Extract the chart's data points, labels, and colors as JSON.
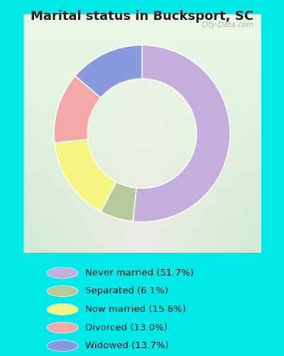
{
  "title": "Marital status in Bucksport, SC",
  "plot_values": [
    51.7,
    6.1,
    15.6,
    13.0,
    13.7
  ],
  "plot_colors": [
    "#c4aedd",
    "#b5c99a",
    "#f5f582",
    "#f5a8a8",
    "#8899dd"
  ],
  "legend_labels": [
    "Never married (51.7%)",
    "Separated (6.1%)",
    "Now married (15.6%)",
    "Divorced (13.0%)",
    "Widowed (13.7%)"
  ],
  "legend_colors": [
    "#c4aedd",
    "#b5c99a",
    "#f5f582",
    "#f5a8a8",
    "#8899dd"
  ],
  "bg_outer": "#00e8e8",
  "title_color": "#222222",
  "title_fontsize": 13,
  "watermark": "City-Data.com",
  "donut_width": 0.38,
  "startangle": 90
}
